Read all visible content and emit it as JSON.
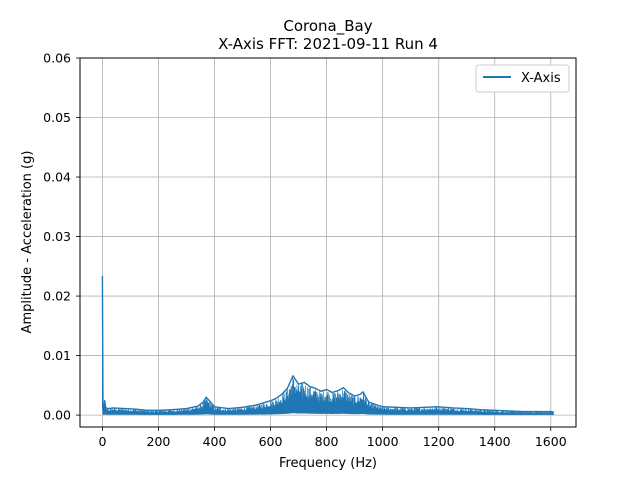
{
  "chart_data": {
    "type": "line",
    "title": "Corona_Bay",
    "subtitle": "X-Axis FFT: 2021-09-11 Run 4",
    "xlabel": "Frequency (Hz)",
    "ylabel": "Amplitude - Acceleration (g)",
    "xlim": [
      -80,
      1690
    ],
    "ylim": [
      -0.002,
      0.06
    ],
    "xticks": [
      0,
      200,
      400,
      600,
      800,
      1000,
      1200,
      1400,
      1600
    ],
    "yticks": [
      0.0,
      0.01,
      0.02,
      0.03,
      0.04,
      0.05,
      0.06
    ],
    "xtick_labels": [
      "0",
      "200",
      "400",
      "600",
      "800",
      "1000",
      "1200",
      "1400",
      "1600"
    ],
    "ytick_labels": [
      "0.00",
      "0.01",
      "0.02",
      "0.03",
      "0.04",
      "0.05",
      "0.06"
    ],
    "grid": true,
    "legend_position": "top-right",
    "series": [
      {
        "name": "X-Axis",
        "color": "#1f77b4",
        "x": [
          0,
          2,
          5,
          8,
          12,
          20,
          40,
          80,
          120,
          160,
          200,
          250,
          300,
          340,
          360,
          370,
          380,
          400,
          450,
          500,
          550,
          600,
          620,
          640,
          660,
          680,
          700,
          720,
          740,
          760,
          780,
          800,
          820,
          840,
          860,
          880,
          900,
          920,
          930,
          950,
          980,
          1000,
          1050,
          1100,
          1150,
          1200,
          1250,
          1300,
          1350,
          1400,
          1450,
          1500,
          1550,
          1600,
          1610
        ],
        "y": [
          0.0233,
          0.001,
          0.0005,
          0.0024,
          0.0012,
          0.0011,
          0.0012,
          0.0011,
          0.001,
          0.0008,
          0.0008,
          0.0009,
          0.0011,
          0.0015,
          0.0022,
          0.003,
          0.0025,
          0.0014,
          0.0011,
          0.0013,
          0.0017,
          0.0024,
          0.0028,
          0.0035,
          0.0045,
          0.0066,
          0.0052,
          0.0055,
          0.0048,
          0.0045,
          0.004,
          0.0043,
          0.0038,
          0.0041,
          0.0046,
          0.0037,
          0.0032,
          0.0035,
          0.0039,
          0.0022,
          0.0017,
          0.0014,
          0.0013,
          0.0012,
          0.0013,
          0.0014,
          0.0012,
          0.0011,
          0.0009,
          0.0008,
          0.0007,
          0.0006,
          0.0006,
          0.0006,
          0.0005
        ]
      }
    ]
  }
}
